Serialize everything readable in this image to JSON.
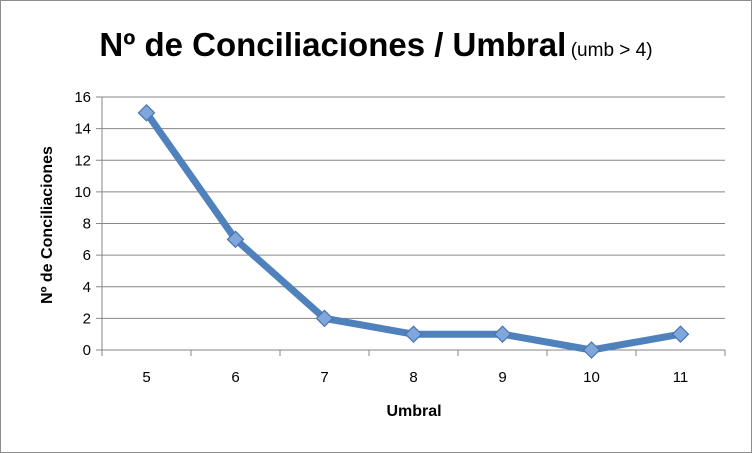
{
  "chart_data": {
    "type": "line",
    "title": "Nº de Conciliaciones / Umbral",
    "subtitle": "(umb > 4)",
    "xlabel": "Umbral",
    "ylabel": "Nº de Conciliaciones",
    "categories": [
      "5",
      "6",
      "7",
      "8",
      "9",
      "10",
      "11"
    ],
    "series": [
      {
        "values": [
          15,
          7,
          2,
          1,
          1,
          0,
          1
        ]
      }
    ],
    "ylim": [
      0,
      16
    ],
    "yticks": [
      "0",
      "2",
      "4",
      "6",
      "8",
      "10",
      "12",
      "14",
      "16"
    ],
    "grid": true,
    "legend": "none",
    "colors": {
      "line": "#4f81bd",
      "marker": "#7fa7dc",
      "marker_edge": "#4a74b0",
      "grid": "#868686"
    }
  }
}
